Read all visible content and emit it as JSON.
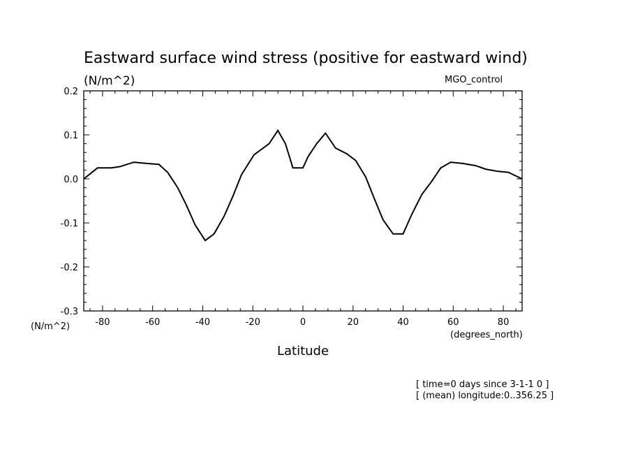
{
  "chart_data": {
    "type": "line",
    "title": "Eastward surface wind stress (positive for eastward wind)",
    "units_label": "(N/m^2)",
    "dataset_label": "MGO_control",
    "xlabel": "Latitude",
    "x_units_label": "(degrees_north)",
    "ylabel": "(N/m^2)",
    "xlim": [
      -87.5,
      87.5
    ],
    "ylim": [
      -0.3,
      0.2
    ],
    "x_ticks": [
      -80,
      -60,
      -40,
      -20,
      0,
      20,
      40,
      60,
      80
    ],
    "x_tick_labels": [
      "-80",
      "-60",
      "-40",
      "-20",
      "0",
      "20",
      "40",
      "60",
      "80"
    ],
    "y_ticks": [
      -0.3,
      -0.2,
      -0.1,
      0.0,
      0.1,
      0.2
    ],
    "y_tick_labels": [
      "-0.3",
      "-0.2",
      "-0.1",
      "0.0",
      "0.1",
      "0.2"
    ],
    "x": [
      -87.5,
      -82,
      -76.5,
      -73,
      -67.5,
      -62,
      -57.5,
      -54,
      -50,
      -46.5,
      -43,
      -39,
      -35.5,
      -31.5,
      -28,
      -24.5,
      -19.5,
      -13.5,
      -10,
      -7,
      -4,
      0,
      2,
      5.5,
      9,
      13,
      17.5,
      21,
      25,
      28.5,
      32,
      36,
      40,
      43.5,
      47.5,
      51.5,
      55,
      59,
      64,
      69,
      73,
      78,
      82,
      87.5
    ],
    "y": [
      0.0,
      0.025,
      0.025,
      0.028,
      0.038,
      0.035,
      0.033,
      0.015,
      -0.02,
      -0.06,
      -0.105,
      -0.14,
      -0.125,
      -0.085,
      -0.04,
      0.01,
      0.055,
      0.08,
      0.11,
      0.08,
      0.025,
      0.025,
      0.05,
      0.08,
      0.104,
      0.07,
      0.057,
      0.042,
      0.005,
      -0.045,
      -0.093,
      -0.125,
      -0.125,
      -0.08,
      -0.035,
      -0.005,
      0.025,
      0.038,
      0.035,
      0.03,
      0.022,
      0.017,
      0.015,
      0.0
    ],
    "grid": false,
    "footer_lines": [
      "[ time=0 days since 3-1-1 0 ]",
      "[ (mean) longitude:0..356.25 ]"
    ]
  }
}
